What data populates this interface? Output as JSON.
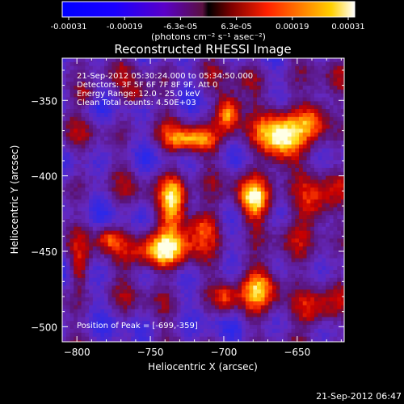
{
  "colorbar": {
    "tick_labels": [
      "-0.00031",
      "-0.00019",
      "-6.3e-05",
      "6.3e-05",
      "0.00019",
      "0.00031"
    ],
    "unit_label": "(photons cm⁻² s⁻¹ asec⁻²)",
    "range": [
      -0.00031,
      0.00031
    ]
  },
  "chart_data": {
    "type": "heatmap",
    "title": "Reconstructed RHESSI Image",
    "xlabel": "Heliocentric X (arcsec)",
    "ylabel": "Heliocentric Y (arcsec)",
    "xlim": [
      -810,
      -618
    ],
    "ylim": [
      -510,
      -322
    ],
    "xticks": [
      -800,
      -750,
      -700,
      -650
    ],
    "yticks": [
      -350,
      -400,
      -450,
      -500
    ],
    "xtick_labels": [
      "−800",
      "−750",
      "−700",
      "−650"
    ],
    "ytick_labels": [
      "−350",
      "−400",
      "−450",
      "−500"
    ],
    "info_lines": [
      "21-Sep-2012 05:30:24.000 to 05:34:50.000",
      "Detectors: 3F 5F 6F 7F 8F 9F, Att 0",
      "Energy Range: 12.0 - 25.0 keV",
      "Clean     Total counts: 4.50E+03"
    ],
    "peak_label": "Position of Peak = [-699,-359]",
    "peak_position": [
      -699,
      -359
    ],
    "sources": [
      {
        "x": -698,
        "y": -357,
        "amp": 1.0,
        "sx": 6,
        "sy": 9
      },
      {
        "x": -665,
        "y": -375,
        "amp": 0.95,
        "sx": 10,
        "sy": 14
      },
      {
        "x": -640,
        "y": -360,
        "amp": 0.8,
        "sx": 8,
        "sy": 10
      },
      {
        "x": -725,
        "y": -375,
        "amp": 0.7,
        "sx": 12,
        "sy": 6
      },
      {
        "x": -735,
        "y": -415,
        "amp": 0.85,
        "sx": 7,
        "sy": 13
      },
      {
        "x": -745,
        "y": -450,
        "amp": 0.9,
        "sx": 15,
        "sy": 9
      },
      {
        "x": -715,
        "y": -430,
        "amp": 0.6,
        "sx": 9,
        "sy": 8
      },
      {
        "x": -680,
        "y": -415,
        "amp": 0.75,
        "sx": 8,
        "sy": 10
      },
      {
        "x": -640,
        "y": -420,
        "amp": 0.7,
        "sx": 9,
        "sy": 12
      },
      {
        "x": -675,
        "y": -470,
        "amp": 0.8,
        "sx": 10,
        "sy": 10
      },
      {
        "x": -640,
        "y": -490,
        "amp": 0.6,
        "sx": 9,
        "sy": 10
      },
      {
        "x": -780,
        "y": -440,
        "amp": 0.5,
        "sx": 6,
        "sy": 6
      },
      {
        "x": -800,
        "y": -460,
        "amp": 0.45,
        "sx": 4,
        "sy": 8
      },
      {
        "x": -795,
        "y": -345,
        "amp": 0.45,
        "sx": 6,
        "sy": 5
      },
      {
        "x": -760,
        "y": -345,
        "amp": 0.4,
        "sx": 6,
        "sy": 5
      },
      {
        "x": -700,
        "y": -480,
        "amp": 0.4,
        "sx": 5,
        "sy": 7
      }
    ]
  },
  "footer": {
    "timestamp": "21-Sep-2012 06:47"
  }
}
